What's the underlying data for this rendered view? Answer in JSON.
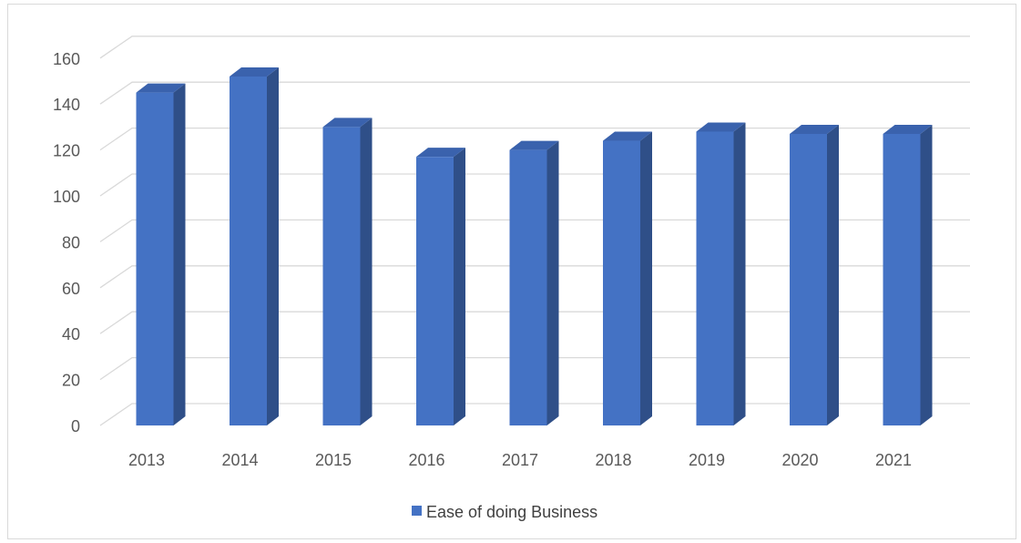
{
  "chart_data": {
    "type": "bar",
    "style": "3d-column",
    "categories": [
      "2013",
      "2014",
      "2015",
      "2016",
      "2017",
      "2018",
      "2019",
      "2020",
      "2021"
    ],
    "series": [
      {
        "name": "Ease of doing Business",
        "values": [
          145,
          152,
          130,
          117,
          120,
          124,
          128,
          127,
          127
        ],
        "color": "#4472c4",
        "side_color": "#2f4f88",
        "top_color": "#3a62ad"
      }
    ],
    "title": "",
    "xlabel": "",
    "ylabel": "",
    "ylim": [
      0,
      160
    ],
    "yticks": [
      0,
      20,
      40,
      60,
      80,
      100,
      120,
      140,
      160
    ],
    "grid": true,
    "legend_position": "bottom",
    "grid_color": "#d9d9d9"
  }
}
